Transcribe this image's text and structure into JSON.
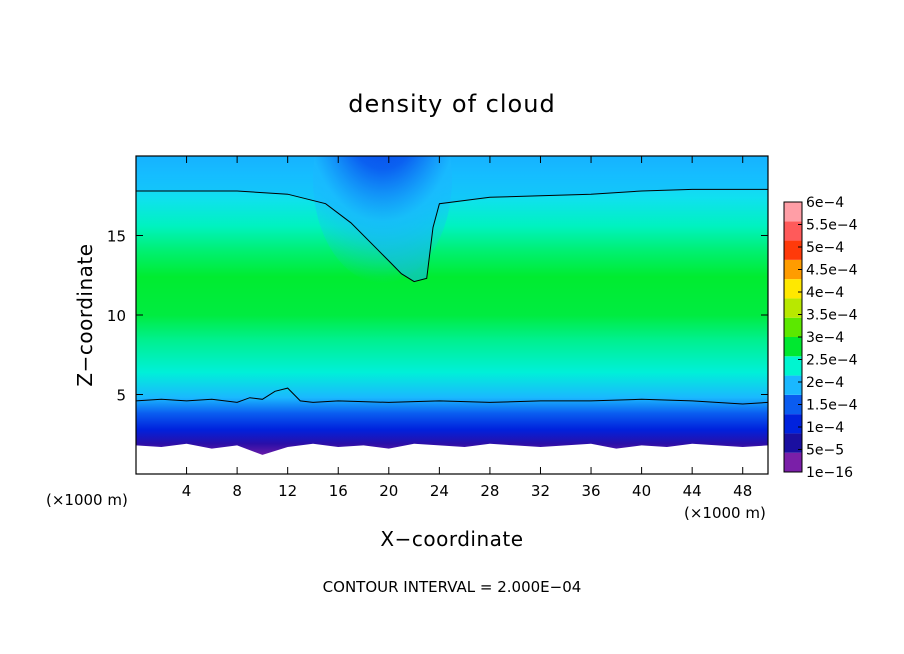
{
  "chart_data": {
    "type": "heatmap",
    "title": "density of cloud",
    "xlabel": "X−coordinate",
    "ylabel": "Z−coordinate",
    "x_unit_label": "(×1000 m)",
    "y_unit_label": "(×1000 m)",
    "xlim": [
      0,
      50
    ],
    "ylim": [
      0,
      20
    ],
    "x_ticks": [
      4,
      8,
      12,
      16,
      20,
      24,
      28,
      32,
      36,
      40,
      44,
      48
    ],
    "y_ticks": [
      5,
      10,
      15
    ],
    "colorbar": {
      "labels": [
        "1e−16",
        "5e−5",
        "1e−4",
        "1.5e−4",
        "2e−4",
        "2.5e−4",
        "3e−4",
        "3.5e−4",
        "4e−4",
        "4.5e−4",
        "5e−4",
        "5.5e−4",
        "6e−4"
      ],
      "values": [
        1e-16,
        5e-05,
        0.0001,
        0.00015,
        0.0002,
        0.00025,
        0.0003,
        0.00035,
        0.0004,
        0.00045,
        0.0005,
        0.00055,
        0.0006
      ],
      "colors": [
        "#7a1fa8",
        "#1a0fa0",
        "#0022dd",
        "#0a5cf0",
        "#1ab8ff",
        "#00f5d0",
        "#00e830",
        "#5ce800",
        "#b8e800",
        "#ffe800",
        "#ff9c00",
        "#ff3a0a",
        "#ff5a5a",
        "#ff9ea6"
      ]
    },
    "contour_interval_text": "CONTOUR INTERVAL = 2.000E−04",
    "field_description_layers": [
      {
        "z_from": 0.0,
        "z_to": 1.0,
        "value": null
      },
      {
        "z_from": 1.0,
        "z_to": 2.0,
        "value": 1e-16
      },
      {
        "z_from": 2.0,
        "z_to": 2.8,
        "value": 5e-05
      },
      {
        "z_from": 2.8,
        "z_to": 3.6,
        "value": 0.0001
      },
      {
        "z_from": 3.6,
        "z_to": 4.6,
        "value": 0.00015
      },
      {
        "z_from": 4.6,
        "z_to": 6.5,
        "value": 0.0002
      },
      {
        "z_from": 6.5,
        "z_to": 8.5,
        "value": 0.00025
      },
      {
        "z_from": 8.5,
        "z_to": 13.0,
        "value": 0.0003
      },
      {
        "z_from": 13.0,
        "z_to": 15.5,
        "value": 0.00025
      },
      {
        "z_from": 15.5,
        "z_to": 18.0,
        "value": 0.0002
      },
      {
        "z_from": 18.0,
        "z_to": 20.0,
        "value": 0.00015
      }
    ],
    "contour_lines": [
      {
        "level": 0.00015,
        "x": [
          0,
          4,
          8,
          12,
          15,
          17,
          19,
          20,
          21,
          22,
          23,
          23.5,
          24,
          28,
          32,
          36,
          40,
          44,
          48,
          50
        ],
        "z": [
          17.8,
          17.8,
          17.8,
          17.6,
          17.0,
          15.8,
          14.2,
          13.4,
          12.6,
          12.1,
          12.3,
          15.5,
          17.0,
          17.4,
          17.5,
          17.6,
          17.8,
          17.9,
          17.9,
          17.9
        ]
      },
      {
        "level": 0.00015,
        "x": [
          0,
          2,
          4,
          6,
          8,
          9,
          10,
          11,
          12,
          13,
          14,
          16,
          20,
          24,
          28,
          32,
          36,
          40,
          44,
          48,
          50
        ],
        "z": [
          4.6,
          4.7,
          4.6,
          4.7,
          4.5,
          4.8,
          4.7,
          5.2,
          5.4,
          4.6,
          4.5,
          4.6,
          4.5,
          4.6,
          4.5,
          4.6,
          4.6,
          4.7,
          4.6,
          4.4,
          4.5
        ]
      }
    ]
  }
}
